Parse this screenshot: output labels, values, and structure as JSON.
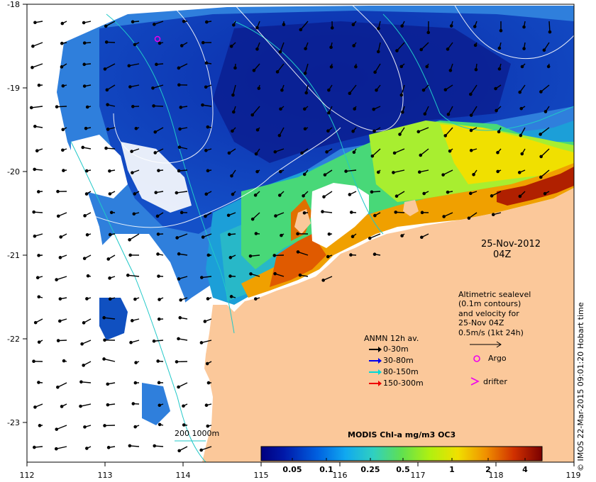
{
  "map": {
    "lon_range": [
      112,
      119
    ],
    "lat_range": [
      -23.5,
      -18
    ],
    "x_ticks": [
      "112",
      "113",
      "114",
      "115",
      "116",
      "117",
      "118",
      "119"
    ],
    "y_ticks": [
      "-18",
      "-19",
      "-20",
      "-21",
      "-22",
      "-23"
    ],
    "land_color": "#fbc89a",
    "cloud_color": "#ffffff"
  },
  "annotations": {
    "date_line1": "25-Nov-2012",
    "date_line2": "04Z",
    "altimetry_1": "Altimetric sealevel",
    "altimetry_2": "(0.1m contours)",
    "altimetry_3": "and velocity for",
    "altimetry_4": "25-Nov 04Z",
    "altimetry_5": "0.5m/s (1kt 24h)",
    "bathy_label": "200  1000m",
    "credit": "© IMOS 22-Mar-2015 09:01:20 Hobart time"
  },
  "legend": {
    "title": "ANMN 12h av.",
    "items": [
      {
        "label": "0-30m",
        "color": "#000000"
      },
      {
        "label": "30-80m",
        "color": "#0000ee"
      },
      {
        "label": "80-150m",
        "color": "#00d8d8"
      },
      {
        "label": "150-300m",
        "color": "#ee0000"
      }
    ],
    "argo_label": "Argo",
    "argo_color": "#ee00ee",
    "drifter_label": "drifter",
    "drifter_color": "#ee00ee"
  },
  "colorbar": {
    "title": "MODIS Chl-a mg/m3 OC3",
    "labels": [
      "0.05",
      "0.1",
      "0.25",
      "0.5",
      "1",
      "2",
      "4"
    ],
    "scale": "log",
    "colors": [
      "#00007f",
      "#0030c8",
      "#0090f0",
      "#20d0e0",
      "#40e080",
      "#a0f020",
      "#f0f000",
      "#f0a000",
      "#e05000",
      "#a01010",
      "#7a0000"
    ]
  },
  "argo_float": {
    "lon": 113.65,
    "lat": -18.42
  }
}
